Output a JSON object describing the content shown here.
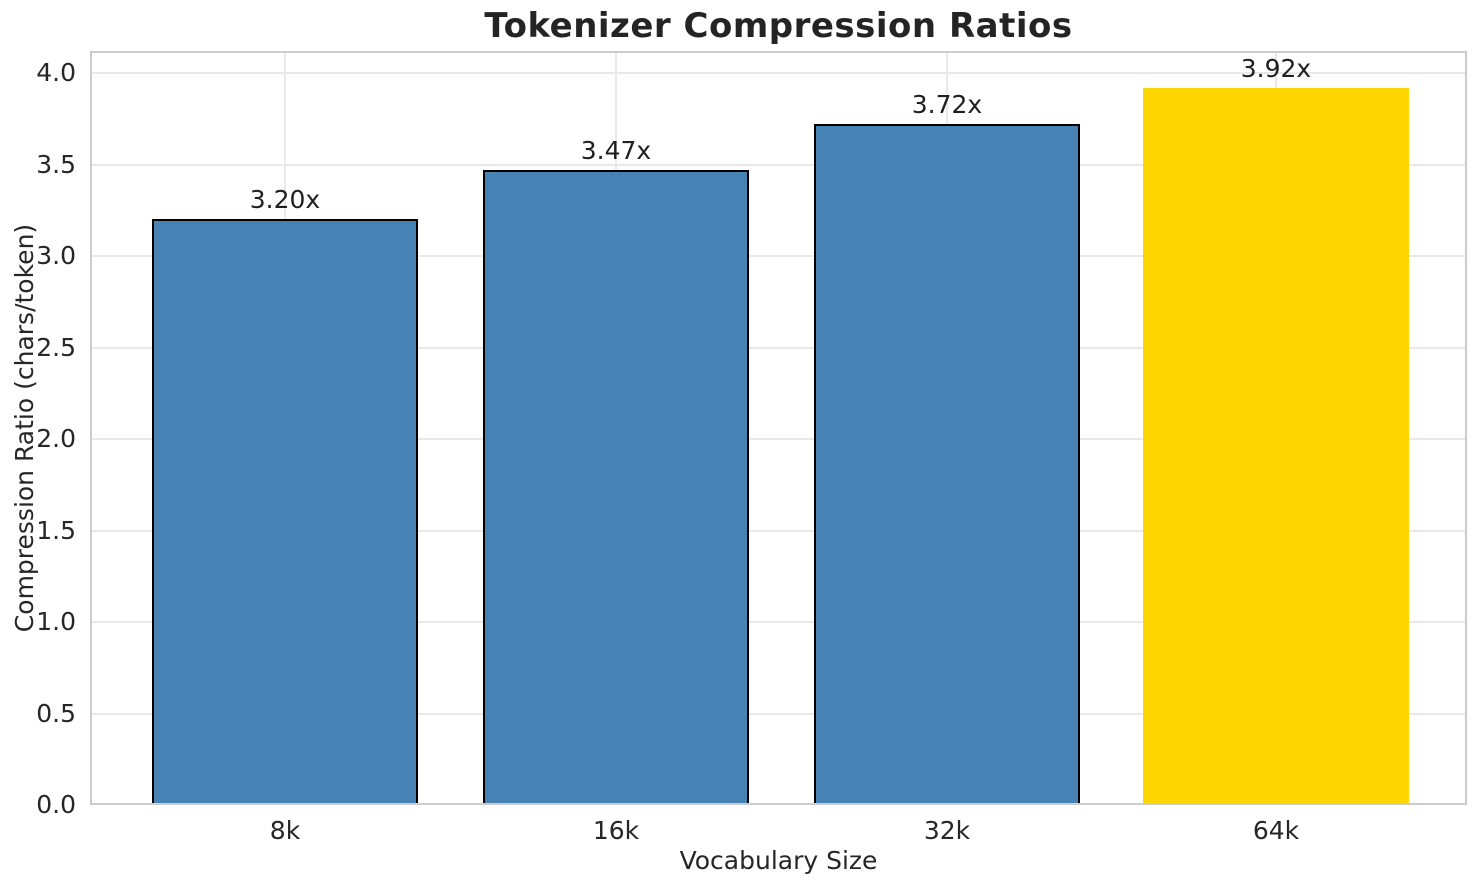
{
  "chart_data": {
    "type": "bar",
    "title": "Tokenizer Compression Ratios",
    "xlabel": "Vocabulary Size",
    "ylabel": "Compression Ratio (chars/token)",
    "categories": [
      "8k",
      "16k",
      "32k",
      "64k"
    ],
    "values": [
      3.2,
      3.47,
      3.72,
      3.92
    ],
    "bar_labels": [
      "3.20x",
      "3.47x",
      "3.72x",
      "3.92x"
    ],
    "bar_colors": [
      "#4682B4",
      "#4682B4",
      "#4682B4",
      "#FFD700"
    ],
    "bar_edge_colors": [
      "#000000",
      "#000000",
      "#000000",
      "none"
    ],
    "highlighted_category": "64k",
    "ylim": [
      0.0,
      4.12
    ],
    "yticks": [
      0.0,
      0.5,
      1.0,
      1.5,
      2.0,
      2.5,
      3.0,
      3.5,
      4.0
    ],
    "ytick_labels": [
      "0.0",
      "0.5",
      "1.0",
      "1.5",
      "2.0",
      "2.5",
      "3.0",
      "3.5",
      "4.0"
    ],
    "grid": "both",
    "legend_position": "none"
  },
  "colors": {
    "grid": "#e9e9e9",
    "spine": "#cccccc",
    "text": "#262626",
    "background": "#ffffff"
  }
}
